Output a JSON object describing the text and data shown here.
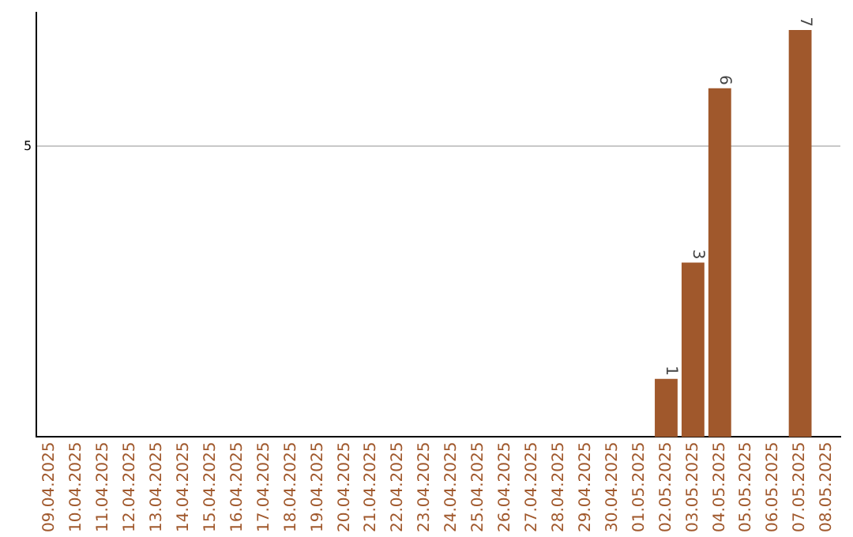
{
  "chart_data": {
    "type": "bar",
    "categories": [
      "09.04.2025",
      "10.04.2025",
      "11.04.2025",
      "12.04.2025",
      "13.04.2025",
      "14.04.2025",
      "15.04.2025",
      "16.04.2025",
      "17.04.2025",
      "18.04.2025",
      "19.04.2025",
      "20.04.2025",
      "21.04.2025",
      "22.04.2025",
      "23.04.2025",
      "24.04.2025",
      "25.04.2025",
      "26.04.2025",
      "27.04.2025",
      "28.04.2025",
      "29.04.2025",
      "30.04.2025",
      "01.05.2025",
      "02.05.2025",
      "03.05.2025",
      "04.05.2025",
      "05.05.2025",
      "06.05.2025",
      "07.05.2025",
      "08.05.2025"
    ],
    "values": [
      null,
      null,
      null,
      null,
      null,
      null,
      null,
      null,
      null,
      null,
      null,
      null,
      null,
      null,
      null,
      null,
      null,
      null,
      null,
      null,
      null,
      null,
      null,
      1,
      3,
      6,
      null,
      null,
      7,
      null
    ],
    "value_labels": [
      null,
      null,
      null,
      null,
      null,
      null,
      null,
      null,
      null,
      null,
      null,
      null,
      null,
      null,
      null,
      null,
      null,
      null,
      null,
      null,
      null,
      null,
      null,
      "1",
      "3",
      "6",
      null,
      null,
      "7",
      null
    ],
    "color": "#a0582c",
    "ylim": [
      0,
      7.3
    ],
    "yticks": [
      5
    ],
    "grid": "y",
    "legend": false
  }
}
